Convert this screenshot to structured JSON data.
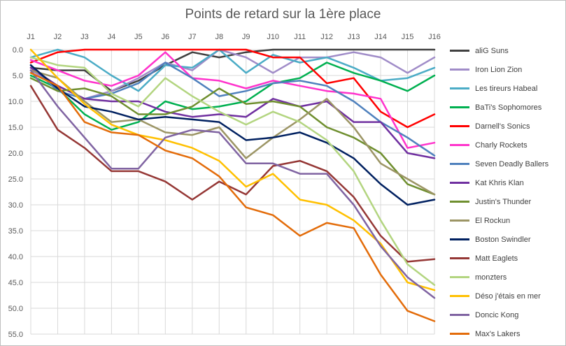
{
  "chart_data": {
    "type": "line",
    "title": "Points de retard sur la 1ère place",
    "xlabel": "",
    "ylabel": "",
    "categories": [
      "J1",
      "J2",
      "J3",
      "J4",
      "J5",
      "J6",
      "J7",
      "J8",
      "J9",
      "J10",
      "J11",
      "J12",
      "J13",
      "J14",
      "J15",
      "J16"
    ],
    "ylim": [
      0,
      55
    ],
    "y_reversed": true,
    "y_ticks": [
      "0.0",
      "5.0",
      "10.0",
      "15.0",
      "20.0",
      "25.0",
      "30.0",
      "35.0",
      "40.0",
      "45.0",
      "50.0",
      "55.0"
    ],
    "x_axis_position": "top",
    "grid": true,
    "legend_position": "right",
    "series": [
      {
        "name": "aliG Suns",
        "color": "#404040",
        "values": [
          3.5,
          4,
          4,
          8,
          6,
          3,
          0.5,
          1.5,
          0.5,
          0,
          0,
          0,
          0,
          0,
          0,
          0
        ]
      },
      {
        "name": "Iron Lion Zion",
        "color": "#a08cc8",
        "values": [
          4,
          7,
          9.5,
          8,
          5.5,
          2.5,
          4,
          0,
          1.5,
          4.5,
          1.5,
          1.5,
          0.5,
          1.5,
          4.5,
          1.5
        ]
      },
      {
        "name": "Les tireurs Habeal",
        "color": "#4bacc6",
        "values": [
          1.5,
          0,
          1.5,
          5,
          8,
          3,
          3.5,
          0,
          4.5,
          1,
          2.5,
          1.5,
          3.5,
          6,
          5.5,
          3.5
        ]
      },
      {
        "name": "BaTi's Sophomores",
        "color": "#00b050",
        "values": [
          5,
          7.5,
          12.5,
          15.5,
          14,
          10,
          11.5,
          11,
          10,
          6.5,
          5.5,
          2.5,
          4.5,
          6,
          8,
          5
        ]
      },
      {
        "name": "Darnell's Sonics",
        "color": "#ff0000",
        "values": [
          2.5,
          0.5,
          0,
          0,
          0,
          0,
          0,
          0,
          0,
          1.5,
          1.5,
          6.5,
          5.5,
          12,
          15,
          12.5
        ]
      },
      {
        "name": "Charly Rockets",
        "color": "#ff33cc",
        "values": [
          2,
          4,
          6,
          7,
          5,
          0.5,
          5.5,
          6,
          7.5,
          6,
          7,
          8,
          8.5,
          9.5,
          19,
          18
        ]
      },
      {
        "name": "Seven Deadly Ballers",
        "color": "#4f81bd",
        "values": [
          3,
          8,
          9.5,
          8.5,
          6.5,
          2.5,
          5.5,
          9,
          8,
          6.5,
          6,
          7,
          10,
          14,
          17,
          20.5
        ]
      },
      {
        "name": "Kat Khris Klan",
        "color": "#7030a0",
        "values": [
          3.5,
          7,
          9.5,
          10,
          10,
          12,
          13,
          12.5,
          13,
          9.5,
          11,
          10,
          14,
          14,
          20,
          21
        ]
      },
      {
        "name": "Justin's Thunder",
        "color": "#6f8f2f",
        "values": [
          5.5,
          8,
          7.5,
          9,
          12.5,
          12.5,
          11,
          7.5,
          10.5,
          10,
          11,
          15,
          17,
          20,
          26,
          28
        ]
      },
      {
        "name": "El Rockun",
        "color": "#9c9565",
        "values": [
          4,
          5.5,
          10,
          14,
          13.5,
          16,
          16.5,
          15,
          21,
          17,
          13.5,
          9.5,
          15,
          22,
          25,
          28
        ]
      },
      {
        "name": "Boston Swindler",
        "color": "#002060",
        "values": [
          3,
          7.5,
          11,
          12,
          13.5,
          13,
          13.5,
          14,
          17.5,
          17,
          16,
          18,
          21,
          26,
          30,
          29
        ]
      },
      {
        "name": "Matt Eaglets",
        "color": "#953735",
        "values": [
          7,
          15.5,
          19,
          23.5,
          23.5,
          25.5,
          29,
          25.5,
          28,
          22.5,
          21.5,
          23.5,
          28.5,
          36,
          41,
          40.5
        ]
      },
      {
        "name": "monzters",
        "color": "#b3d580",
        "values": [
          1.5,
          3,
          3.5,
          8.5,
          11,
          5.5,
          9,
          12,
          14.5,
          12,
          14,
          17.5,
          23.5,
          33,
          41.5,
          45.5
        ]
      },
      {
        "name": "Déso j'étais en mer",
        "color": "#ffc000",
        "values": [
          0,
          5.5,
          10.5,
          14.5,
          16.5,
          17.5,
          19,
          21.5,
          26.5,
          24,
          29,
          30,
          33,
          37.5,
          45,
          46.5
        ]
      },
      {
        "name": "Doncic Kong",
        "color": "#8064a2",
        "values": [
          4,
          11,
          17,
          23,
          23,
          17,
          15.5,
          16,
          22,
          22,
          24,
          24,
          30,
          38,
          44,
          48
        ]
      },
      {
        "name": "Max's Lakers",
        "color": "#e36c0a",
        "values": [
          4.5,
          7,
          14,
          16,
          16.5,
          19.5,
          21,
          24.5,
          30.5,
          32,
          36,
          33.5,
          34.5,
          43.5,
          50.5,
          52.5
        ]
      }
    ]
  }
}
